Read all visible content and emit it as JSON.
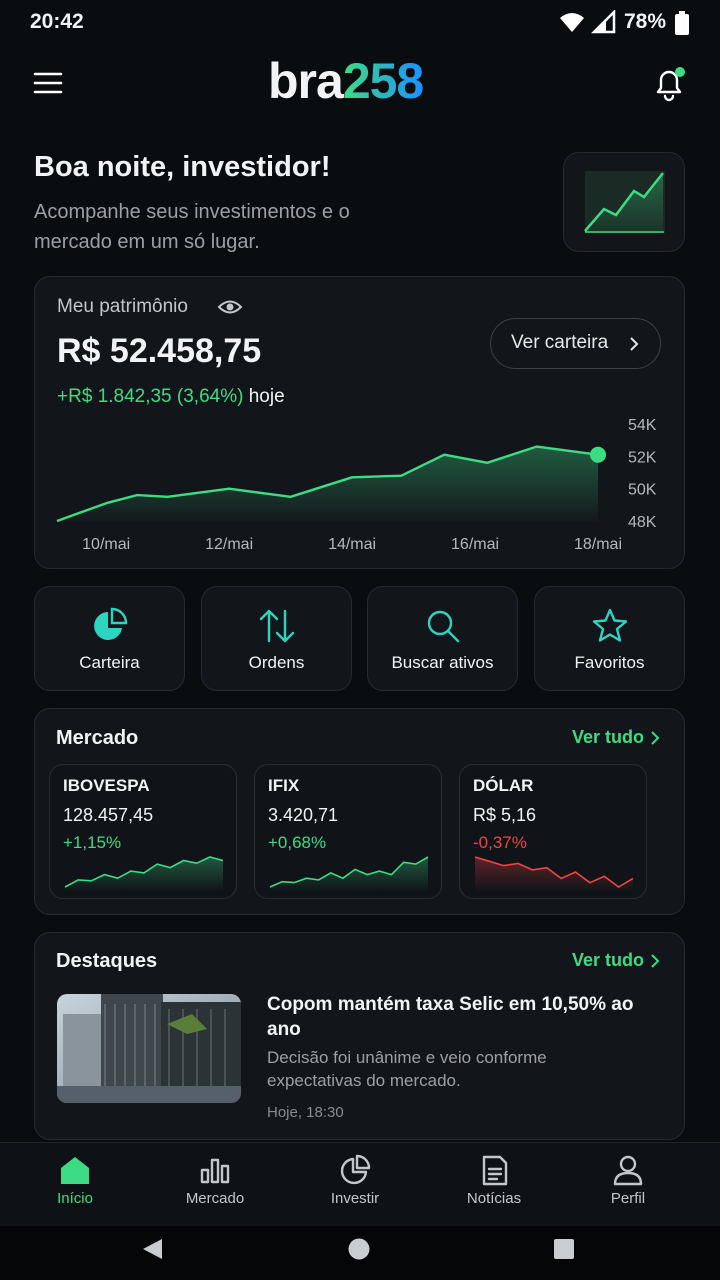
{
  "status_bar": {
    "time": "20:42",
    "battery": "78%"
  },
  "header": {
    "logo_main": "bra",
    "logo_accent": "258"
  },
  "greeting": {
    "title": "Boa noite, investidor!",
    "subtitle": "Acompanhe seus investimentos e o mercado em um só lugar."
  },
  "portfolio": {
    "label": "Meu patrimônio",
    "balance": "R$ 52.458,75",
    "button": "Ver carteira",
    "change": "+R$ 1.842,35 (3,64%)",
    "period": "hoje"
  },
  "chart_data": {
    "type": "line",
    "color": "#3ddc84",
    "x": [
      9.2,
      10,
      10.5,
      11,
      12,
      13,
      14,
      14.8,
      15.5,
      16.2,
      17,
      18
    ],
    "values": [
      48000,
      49100,
      49600,
      49500,
      50000,
      49500,
      50700,
      50800,
      52100,
      51600,
      52600,
      52100
    ],
    "xlim": [
      9.2,
      18
    ],
    "xticks": [
      {
        "value": 10,
        "label": "10/mai"
      },
      {
        "value": 12,
        "label": "12/mai"
      },
      {
        "value": 14,
        "label": "14/mai"
      },
      {
        "value": 16,
        "label": "16/mai"
      },
      {
        "value": 18,
        "label": "18/mai"
      }
    ],
    "ylim": [
      48000,
      54000
    ],
    "yticks": [
      {
        "value": 48000,
        "label": "48K"
      },
      {
        "value": 50000,
        "label": "50K"
      },
      {
        "value": 52000,
        "label": "52K"
      },
      {
        "value": 54000,
        "label": "54K"
      }
    ]
  },
  "shortcuts": [
    "Carteira",
    "Ordens",
    "Buscar ativos",
    "Favoritos"
  ],
  "market": {
    "title": "Mercado",
    "link": "Ver tudo",
    "cards": [
      {
        "name": "IBOVESPA",
        "value": "128.457,45",
        "change": "+1,15%",
        "color": "#3ddc84",
        "spark": [
          10,
          18,
          17,
          24,
          20,
          28,
          26,
          36,
          32,
          40,
          37,
          44,
          40
        ]
      },
      {
        "name": "IFIX",
        "value": "3.420,71",
        "change": "+0,68%",
        "color": "#3ddc84",
        "spark": [
          10,
          16,
          15,
          20,
          18,
          26,
          20,
          30,
          24,
          28,
          24,
          38,
          36,
          44
        ]
      },
      {
        "name": "DÓLAR",
        "value": "R$ 5,16",
        "change": "-0,37%",
        "color": "#ef4444",
        "spark": [
          40,
          38,
          36,
          37,
          34,
          35,
          30,
          33,
          28,
          31,
          26,
          30
        ]
      }
    ]
  },
  "highlights": {
    "title": "Destaques",
    "link": "Ver tudo",
    "article": {
      "title": "Copom mantém taxa Selic em 10,50% ao ano",
      "summary": "Decisão foi unânime e veio conforme expectativas do mercado.",
      "time": "Hoje, 18:30"
    }
  },
  "nav": [
    "Início",
    "Mercado",
    "Investir",
    "Notícias",
    "Perfil"
  ]
}
